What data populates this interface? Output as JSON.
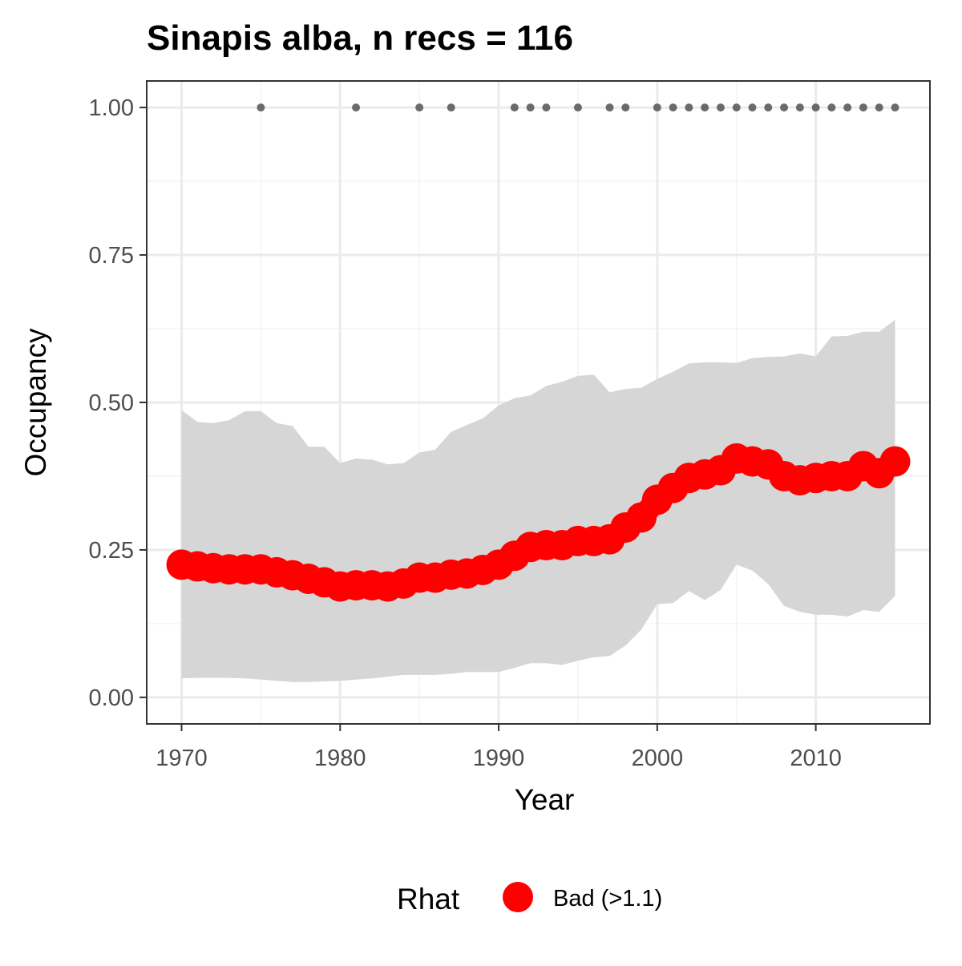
{
  "chart_data": {
    "type": "line",
    "title": "Sinapis alba, n recs = 116",
    "xlabel": "Year",
    "ylabel": "Occupancy",
    "xlim": [
      1967.8,
      2017.2
    ],
    "ylim": [
      -0.045,
      1.045
    ],
    "xticks": [
      1970,
      1980,
      1990,
      2000,
      2010
    ],
    "xtick_labels": [
      "1970",
      "1980",
      "1990",
      "2000",
      "2010"
    ],
    "yticks": [
      0,
      0.25,
      0.5,
      0.75,
      1
    ],
    "ytick_labels": [
      "0.00",
      "0.25",
      "0.50",
      "0.75",
      "1.00"
    ],
    "grid": true,
    "series": [
      {
        "type": "line",
        "color": "#ff0000",
        "x": [
          1970,
          1971,
          1972,
          1973,
          1974,
          1975,
          1976,
          1977,
          1978,
          1979,
          1980,
          1981,
          1982,
          1983,
          1984,
          1985,
          1986,
          1987,
          1988,
          1989,
          1990,
          1991,
          1992,
          1993,
          1994,
          1995,
          1996,
          1997,
          1998,
          1999,
          2000,
          2001,
          2002,
          2003,
          2004,
          2005,
          2006,
          2007,
          2008,
          2009,
          2010,
          2011,
          2012,
          2013,
          2014,
          2015
        ],
        "y": [
          0.225,
          0.222,
          0.219,
          0.217,
          0.217,
          0.217,
          0.212,
          0.207,
          0.201,
          0.195,
          0.188,
          0.19,
          0.19,
          0.188,
          0.193,
          0.203,
          0.203,
          0.208,
          0.21,
          0.216,
          0.225,
          0.24,
          0.255,
          0.258,
          0.258,
          0.265,
          0.265,
          0.268,
          0.288,
          0.305,
          0.335,
          0.355,
          0.372,
          0.378,
          0.385,
          0.405,
          0.4,
          0.395,
          0.375,
          0.368,
          0.372,
          0.375,
          0.375,
          0.392,
          0.38,
          0.4
        ]
      },
      {
        "type": "ribbon",
        "color": "#d6d6d6",
        "x": [
          1970,
          1971,
          1972,
          1973,
          1974,
          1975,
          1976,
          1977,
          1978,
          1979,
          1980,
          1981,
          1982,
          1983,
          1984,
          1985,
          1986,
          1987,
          1988,
          1989,
          1990,
          1991,
          1992,
          1993,
          1994,
          1995,
          1996,
          1997,
          1998,
          1999,
          2000,
          2001,
          2002,
          2003,
          2004,
          2005,
          2006,
          2007,
          2008,
          2009,
          2010,
          2011,
          2012,
          2013,
          2014,
          2015
        ],
        "lower": [
          0.032,
          0.033,
          0.033,
          0.033,
          0.032,
          0.03,
          0.028,
          0.026,
          0.026,
          0.027,
          0.028,
          0.03,
          0.032,
          0.035,
          0.038,
          0.038,
          0.038,
          0.04,
          0.043,
          0.043,
          0.043,
          0.05,
          0.058,
          0.058,
          0.055,
          0.062,
          0.068,
          0.07,
          0.088,
          0.115,
          0.158,
          0.16,
          0.18,
          0.165,
          0.182,
          0.225,
          0.215,
          0.192,
          0.155,
          0.145,
          0.14,
          0.14,
          0.137,
          0.148,
          0.145,
          0.172
        ],
        "upper": [
          0.487,
          0.467,
          0.465,
          0.47,
          0.485,
          0.485,
          0.465,
          0.46,
          0.425,
          0.425,
          0.397,
          0.405,
          0.403,
          0.395,
          0.397,
          0.415,
          0.42,
          0.45,
          0.462,
          0.473,
          0.495,
          0.507,
          0.512,
          0.528,
          0.535,
          0.545,
          0.547,
          0.517,
          0.523,
          0.525,
          0.54,
          0.552,
          0.566,
          0.568,
          0.568,
          0.567,
          0.575,
          0.577,
          0.578,
          0.583,
          0.578,
          0.612,
          0.613,
          0.62,
          0.62,
          0.64
        ]
      },
      {
        "type": "scatter",
        "color": "#6a6a6a",
        "x": [
          1975,
          1981,
          1985,
          1987,
          1991,
          1992,
          1993,
          1995,
          1997,
          1998,
          2000,
          2001,
          2002,
          2003,
          2004,
          2005,
          2006,
          2007,
          2008,
          2009,
          2010,
          2011,
          2012,
          2013,
          2014,
          2015
        ],
        "y": [
          1,
          1,
          1,
          1,
          1,
          1,
          1,
          1,
          1,
          1,
          1,
          1,
          1,
          1,
          1,
          1,
          1,
          1,
          1,
          1,
          1,
          1,
          1,
          1,
          1,
          1
        ]
      }
    ],
    "legend": {
      "position": "bottom",
      "title": "Rhat",
      "entries": [
        {
          "label": "Bad (>1.1)",
          "color": "#ff0000"
        }
      ]
    },
    "colors": {
      "panel_border": "#333333",
      "grid_major": "#ebebeb",
      "grid_minor": "#f4f4f4",
      "tick_text": "#4d4d4d"
    }
  }
}
